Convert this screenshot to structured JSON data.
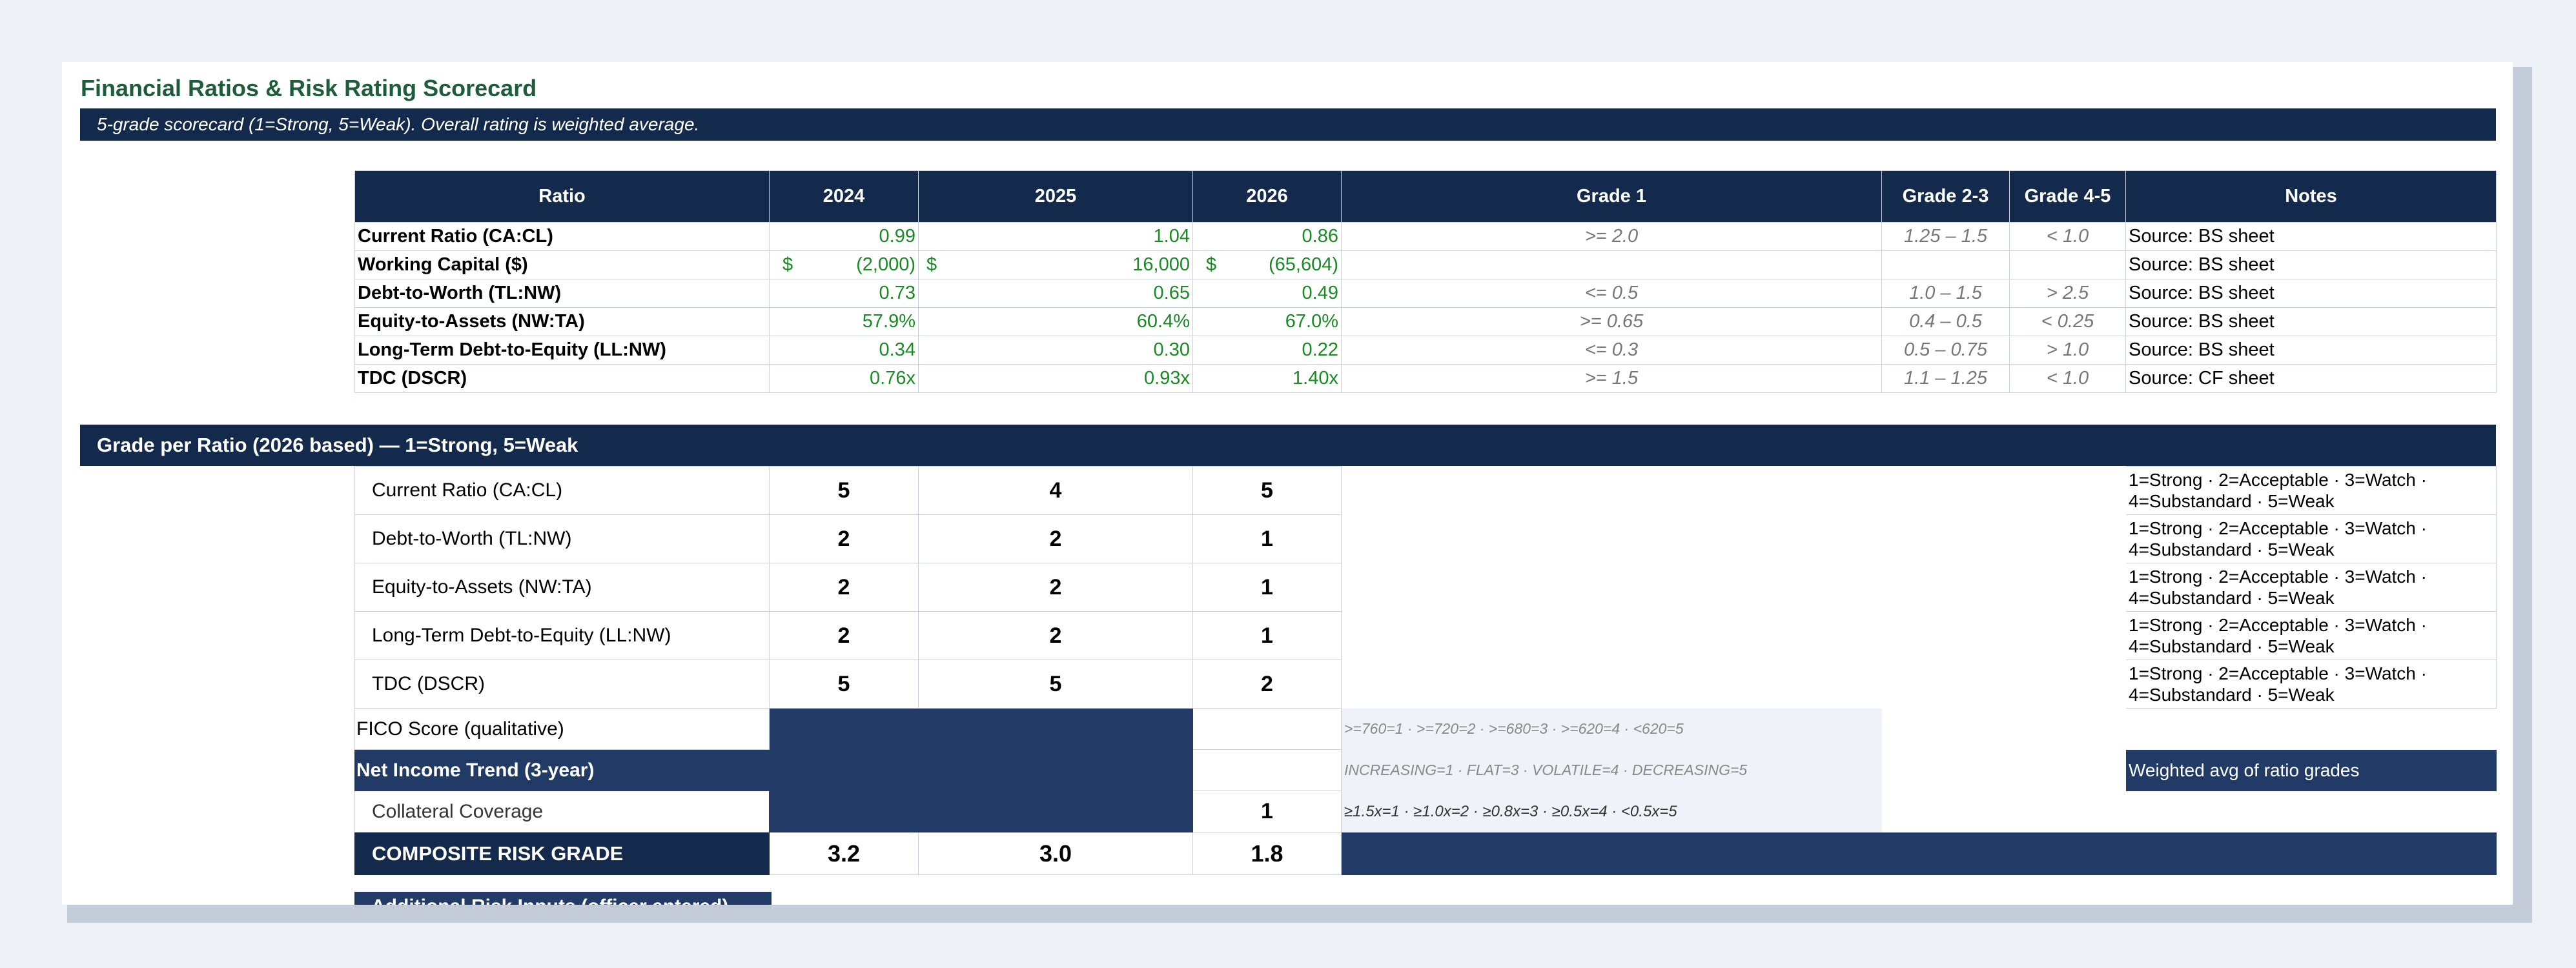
{
  "title": "Financial Ratios & Risk Rating Scorecard",
  "subtitle": "5-grade scorecard (1=Strong, 5=Weak).  Overall rating is weighted average.",
  "ratio_table": {
    "headers": [
      "Ratio",
      "2024",
      "2025",
      "2026",
      "Grade 1",
      "Grade 2-3",
      "Grade 4-5",
      "Notes"
    ],
    "rows": [
      {
        "ratio": "Current Ratio (CA:CL)",
        "y2024": "0.99",
        "y2025": "1.04",
        "y2026": "0.86",
        "g1": ">= 2.0",
        "g23": "1.25 – 1.5",
        "g45": "< 1.0",
        "note": "Source: BS sheet"
      },
      {
        "ratio": "Working Capital ($)",
        "sym": "$",
        "y2024": "(2,000)",
        "y2025": "16,000",
        "y2026": "(65,604)",
        "g1": "",
        "g23": "",
        "g45": "",
        "note": "Source: BS sheet"
      },
      {
        "ratio": "Debt-to-Worth (TL:NW)",
        "y2024": "0.73",
        "y2025": "0.65",
        "y2026": "0.49",
        "g1": "<= 0.5",
        "g23": "1.0 – 1.5",
        "g45": "> 2.5",
        "note": "Source: BS sheet"
      },
      {
        "ratio": "Equity-to-Assets (NW:TA)",
        "y2024": "57.9%",
        "y2025": "60.4%",
        "y2026": "67.0%",
        "g1": ">= 0.65",
        "g23": "0.4 – 0.5",
        "g45": "< 0.25",
        "note": "Source: BS sheet"
      },
      {
        "ratio": "Long-Term Debt-to-Equity (LL:NW)",
        "y2024": "0.34",
        "y2025": "0.30",
        "y2026": "0.22",
        "g1": "<= 0.3",
        "g23": "0.5 – 0.75",
        "g45": "> 1.0",
        "note": "Source: BS sheet"
      },
      {
        "ratio": "TDC (DSCR)",
        "y2024": "0.76x",
        "y2025": "0.93x",
        "y2026": "1.40x",
        "g1": ">= 1.5",
        "g23": "1.1 – 1.25",
        "g45": "< 1.0",
        "note": "Source: CF sheet"
      }
    ]
  },
  "grade_section": {
    "title": "Grade per Ratio (2026 based)  — 1=Strong, 5=Weak",
    "rows": [
      {
        "name": "Current Ratio (CA:CL)",
        "g2024": "5",
        "g2025": "4",
        "g2026": "5",
        "legend": "1=Strong · 2=Acceptable · 3=Watch · 4=Substandard · 5=Weak"
      },
      {
        "name": "Debt-to-Worth (TL:NW)",
        "g2024": "2",
        "g2025": "2",
        "g2026": "1",
        "legend": "1=Strong · 2=Acceptable · 3=Watch · 4=Substandard · 5=Weak"
      },
      {
        "name": "Equity-to-Assets (NW:TA)",
        "g2024": "2",
        "g2025": "2",
        "g2026": "1",
        "legend": "1=Strong · 2=Acceptable · 3=Watch · 4=Substandard · 5=Weak"
      },
      {
        "name": "Long-Term Debt-to-Equity (LL:NW)",
        "g2024": "2",
        "g2025": "2",
        "g2026": "1",
        "legend": "1=Strong · 2=Acceptable · 3=Watch · 4=Substandard · 5=Weak"
      },
      {
        "name": "TDC (DSCR)",
        "g2024": "5",
        "g2025": "5",
        "g2026": "2",
        "legend": "1=Strong · 2=Acceptable · 3=Watch · 4=Substandard · 5=Weak"
      }
    ],
    "fico": {
      "label": "FICO Score (qualitative)",
      "value": "",
      "rule": ">=760=1 · >=720=2 · >=680=3 · >=620=4 · <620=5"
    },
    "net_income": {
      "label": "Net Income Trend (3-year)",
      "value": "",
      "rule": "INCREASING=1 · FLAT=3 · VOLATILE=4 · DECREASING=5",
      "note": "Weighted avg of ratio grades"
    },
    "collateral": {
      "label": "Collateral Coverage",
      "value": "1",
      "rule": "≥1.5x=1 · ≥1.0x=2 · ≥0.8x=3 · ≥0.5x=4 · <0.5x=5"
    },
    "composite": {
      "label": "COMPOSITE RISK GRADE",
      "y2024": "3.2",
      "y2025": "3.0",
      "y2026": "1.8"
    }
  },
  "additional": {
    "label": "Additional Risk Inputs (officer entered)"
  }
}
